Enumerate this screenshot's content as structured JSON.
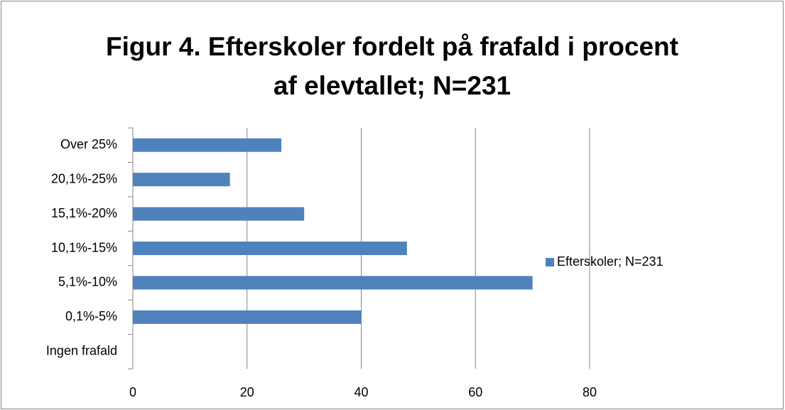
{
  "chart_data": {
    "type": "bar",
    "orientation": "horizontal",
    "title": "Figur 4. Efterskoler fordelt på frafald i procent af elevtallet; N=231",
    "categories": [
      "Ingen frafald",
      "0,1%-5%",
      "5,1%-10%",
      "10,1%-15%",
      "15,1%-20%",
      "20,1%-25%",
      "Over 25%"
    ],
    "series": [
      {
        "name": "Efterskoler; N=231",
        "color": "#4f81bd",
        "values": [
          0,
          40,
          70,
          48,
          30,
          17,
          26
        ]
      }
    ],
    "xlim": [
      0,
      80
    ],
    "xticks": [
      0,
      20,
      40,
      60,
      80
    ],
    "grid": true,
    "legend": "right"
  }
}
